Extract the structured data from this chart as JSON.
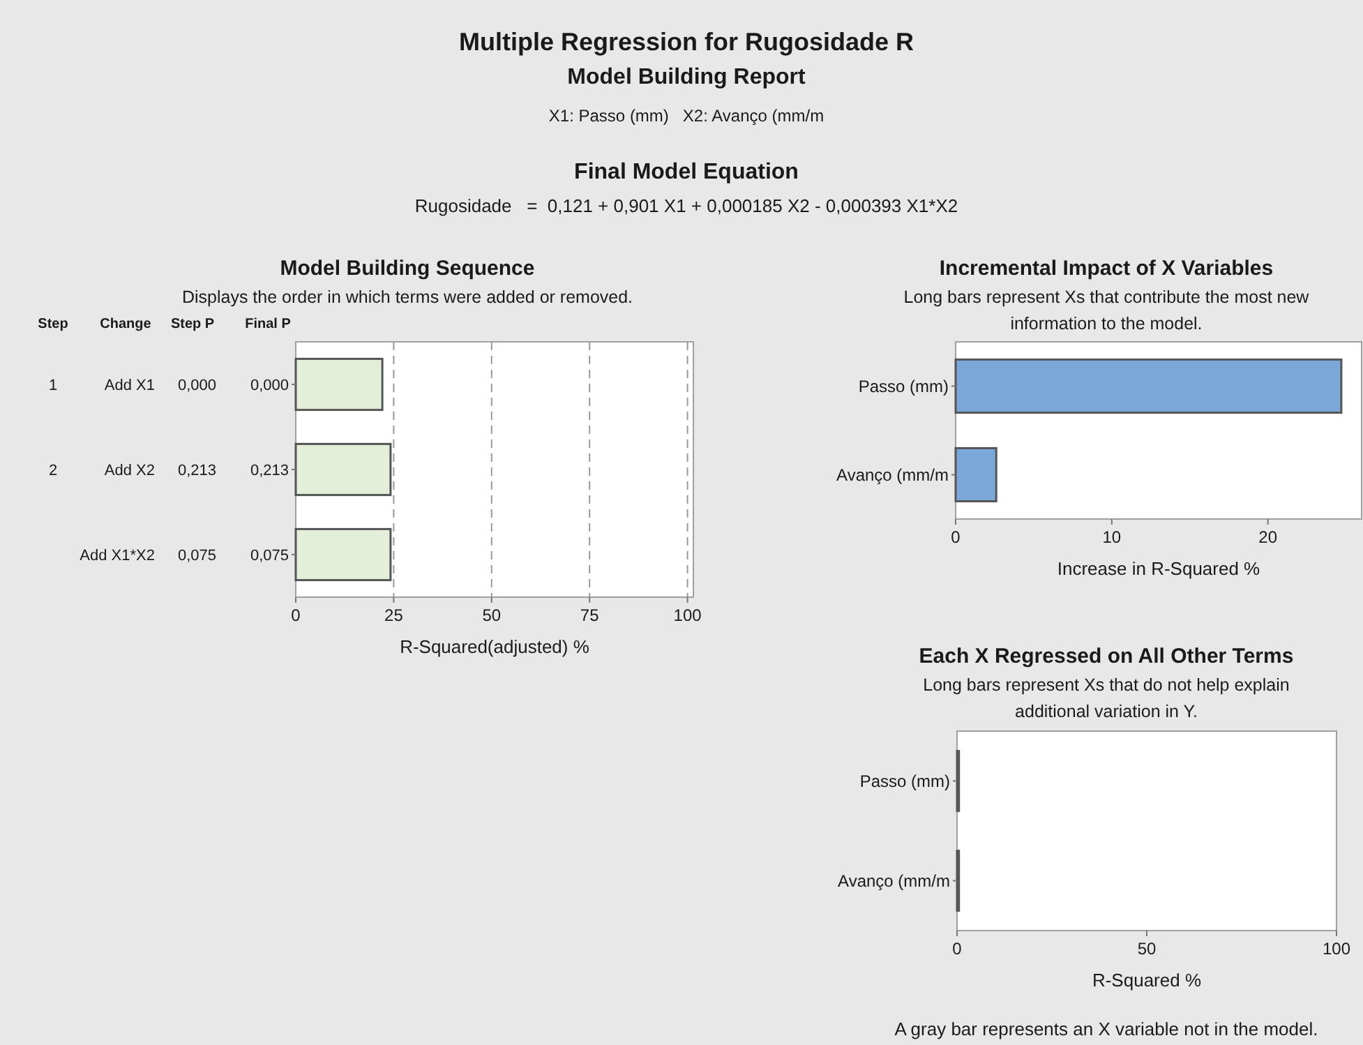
{
  "chart_data": [
    {
      "type": "other",
      "title": "Multiple Regression for Rugosidade R",
      "subtitle": "Model Building Report",
      "annotations": [
        "X1: Passo (mm)   X2: Avanço (mm/m",
        "Final Model Equation",
        "Rugosidade   =  0,121 + 0,901 X1 + 0,000185 X2 - 0,000393 X1*X2"
      ]
    },
    {
      "type": "bar",
      "orientation": "horizontal",
      "title": "Model Building Sequence",
      "subtitle": "Displays the order in which terms were added or removed.",
      "xlabel": "R-Squared(adjusted) %",
      "categories": [
        "0,000",
        "0,213",
        "0,075"
      ],
      "values": [
        22.1,
        24.2,
        24.2
      ],
      "color": "#e3efd9",
      "xlim": [
        0,
        101.5
      ],
      "xticks": [
        0,
        25,
        50,
        75,
        100
      ],
      "grid": "x",
      "annotations": [
        "Step",
        "Change",
        "Step P",
        "Final P",
        "1",
        "Add X1",
        "0,000",
        "2",
        "Add X2",
        "0,213",
        "Add X1*X2",
        "0,075"
      ]
    },
    {
      "type": "bar",
      "orientation": "horizontal",
      "title": "Incremental Impact of X Variables",
      "subtitle": "Long bars represent Xs that contribute the most new information to the model.",
      "xlabel": "Increase in R-Squared %",
      "categories": [
        "Passo (mm)",
        "Avanço (mm/m"
      ],
      "values": [
        24.7,
        2.6
      ],
      "color": "#7ba7d9",
      "xlim": [
        0,
        26
      ],
      "xticks": [
        0,
        10,
        20
      ]
    },
    {
      "type": "bar",
      "orientation": "horizontal",
      "title": "Each X Regressed on All Other Terms",
      "subtitle": "Long bars represent Xs that do not help explain additional variation in Y.",
      "xlabel": "R-Squared %",
      "categories": [
        "Passo (mm)",
        "Avanço (mm/m"
      ],
      "values": [
        0.5,
        0.5
      ],
      "color": "#7ba7d9",
      "xlim": [
        0,
        100
      ],
      "xticks": [
        0,
        50,
        100
      ],
      "annotations": [
        "A gray bar represents an X variable not in the model."
      ]
    }
  ]
}
